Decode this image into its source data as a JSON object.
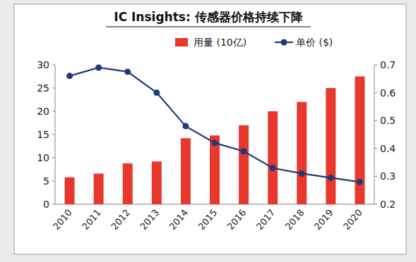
{
  "chart_data": {
    "type": "bar",
    "title": "IC Insights: 传感器价格持续下降",
    "categories": [
      "2010",
      "2011",
      "2012",
      "2013",
      "2014",
      "2015",
      "2016",
      "2017",
      "2018",
      "2019",
      "2020"
    ],
    "series": [
      {
        "name": "用量 (10亿)",
        "type": "bar",
        "color": "#e8372c",
        "values": [
          5.8,
          6.6,
          8.8,
          9.2,
          14.2,
          14.8,
          17,
          20,
          22,
          25,
          27.5
        ]
      },
      {
        "name": "单价 ($)",
        "type": "line",
        "color": "#1f3a7a",
        "marker": "circle",
        "axis": "y2",
        "values": [
          0.66,
          0.69,
          0.675,
          0.6,
          0.48,
          0.42,
          0.39,
          0.33,
          0.31,
          0.295,
          0.28
        ]
      }
    ],
    "ylim": [
      0,
      30
    ],
    "yticks": [
      0,
      5,
      10,
      15,
      20,
      25,
      30
    ],
    "y2lim": [
      0.2,
      0.7
    ],
    "y2ticks": [
      0.2,
      0.3,
      0.4,
      0.5,
      0.6,
      0.7
    ],
    "grid": false,
    "legend": "top"
  }
}
